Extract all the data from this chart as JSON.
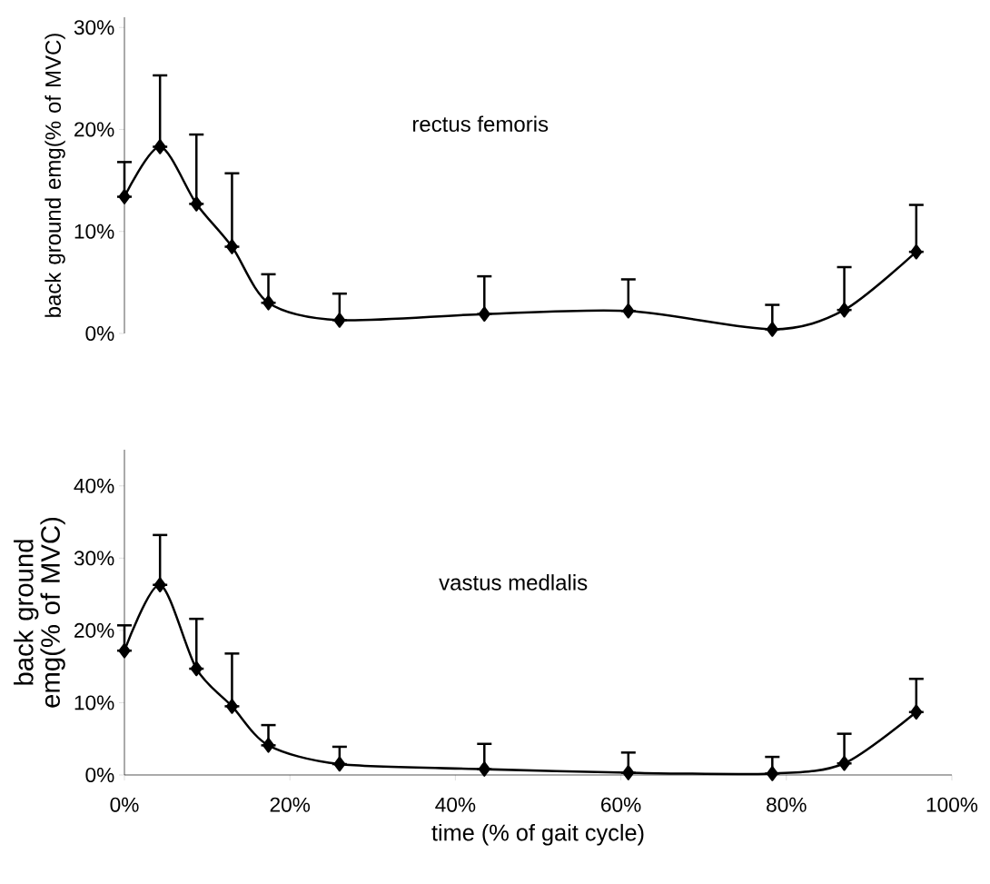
{
  "chart_data": [
    {
      "type": "line",
      "title": "rectus femoris",
      "ylabel": "back ground emg(% of MVC)",
      "x": [
        0,
        4.3,
        8.7,
        13,
        17.4,
        26,
        43.5,
        60.9,
        78.3,
        87,
        95.7
      ],
      "series": [
        {
          "color": "#000000",
          "values": [
            13.4,
            18.3,
            12.7,
            8.5,
            3.0,
            1.3,
            1.9,
            2.2,
            0.4,
            2.3,
            8.0
          ],
          "errors": [
            [
              13.4,
              16.8
            ],
            [
              18.3,
              25.3
            ],
            [
              12.7,
              19.5
            ],
            [
              8.5,
              15.7
            ],
            [
              3.0,
              5.8
            ],
            [
              1.3,
              3.9
            ],
            [
              1.9,
              5.6
            ],
            [
              2.2,
              5.3
            ],
            [
              0.4,
              2.8
            ],
            [
              2.3,
              6.5
            ],
            [
              8.0,
              12.6
            ]
          ]
        }
      ],
      "xlim": [
        0,
        100
      ],
      "ylim": [
        0,
        31
      ],
      "yticks": [
        {
          "value": 0,
          "label": "0%"
        },
        {
          "value": 10,
          "label": "10%"
        },
        {
          "value": 20,
          "label": "20%"
        },
        {
          "value": 30,
          "label": "30%"
        }
      ],
      "tick_labels": "y",
      "grid": false,
      "marker": "diamond",
      "line_style": "solid"
    },
    {
      "type": "line",
      "title": "vastus medlalis",
      "ylabel": "back ground emg(% of MVC)",
      "xlabel": "time (% of gait cycle)",
      "x": [
        0,
        4.3,
        8.7,
        13,
        17.4,
        26,
        43.5,
        60.9,
        78.3,
        87,
        95.7
      ],
      "series": [
        {
          "color": "#000000",
          "values": [
            17.2,
            26.3,
            14.7,
            9.5,
            4.1,
            1.5,
            0.8,
            0.3,
            0.2,
            1.6,
            8.7
          ],
          "errors": [
            [
              17.2,
              20.7
            ],
            [
              26.3,
              33.2
            ],
            [
              14.7,
              21.6
            ],
            [
              9.5,
              16.8
            ],
            [
              4.1,
              6.9
            ],
            [
              1.5,
              3.9
            ],
            [
              0.8,
              4.3
            ],
            [
              0.3,
              3.1
            ],
            [
              0.2,
              2.5
            ],
            [
              1.6,
              5.7
            ],
            [
              8.7,
              13.3
            ]
          ]
        }
      ],
      "xlim": [
        0,
        100
      ],
      "ylim": [
        0,
        45
      ],
      "xticks": [
        {
          "value": 0,
          "label": "0%"
        },
        {
          "value": 20,
          "label": "20%"
        },
        {
          "value": 40,
          "label": "40%"
        },
        {
          "value": 60,
          "label": "60%"
        },
        {
          "value": 80,
          "label": "80%"
        },
        {
          "value": 100,
          "label": "100%"
        }
      ],
      "yticks": [
        {
          "value": 0,
          "label": "0%"
        },
        {
          "value": 10,
          "label": "10%"
        },
        {
          "value": 20,
          "label": "20%"
        },
        {
          "value": 30,
          "label": "30%"
        },
        {
          "value": 40,
          "label": "40%"
        }
      ],
      "grid": false,
      "marker": "diamond",
      "line_style": "solid"
    }
  ]
}
